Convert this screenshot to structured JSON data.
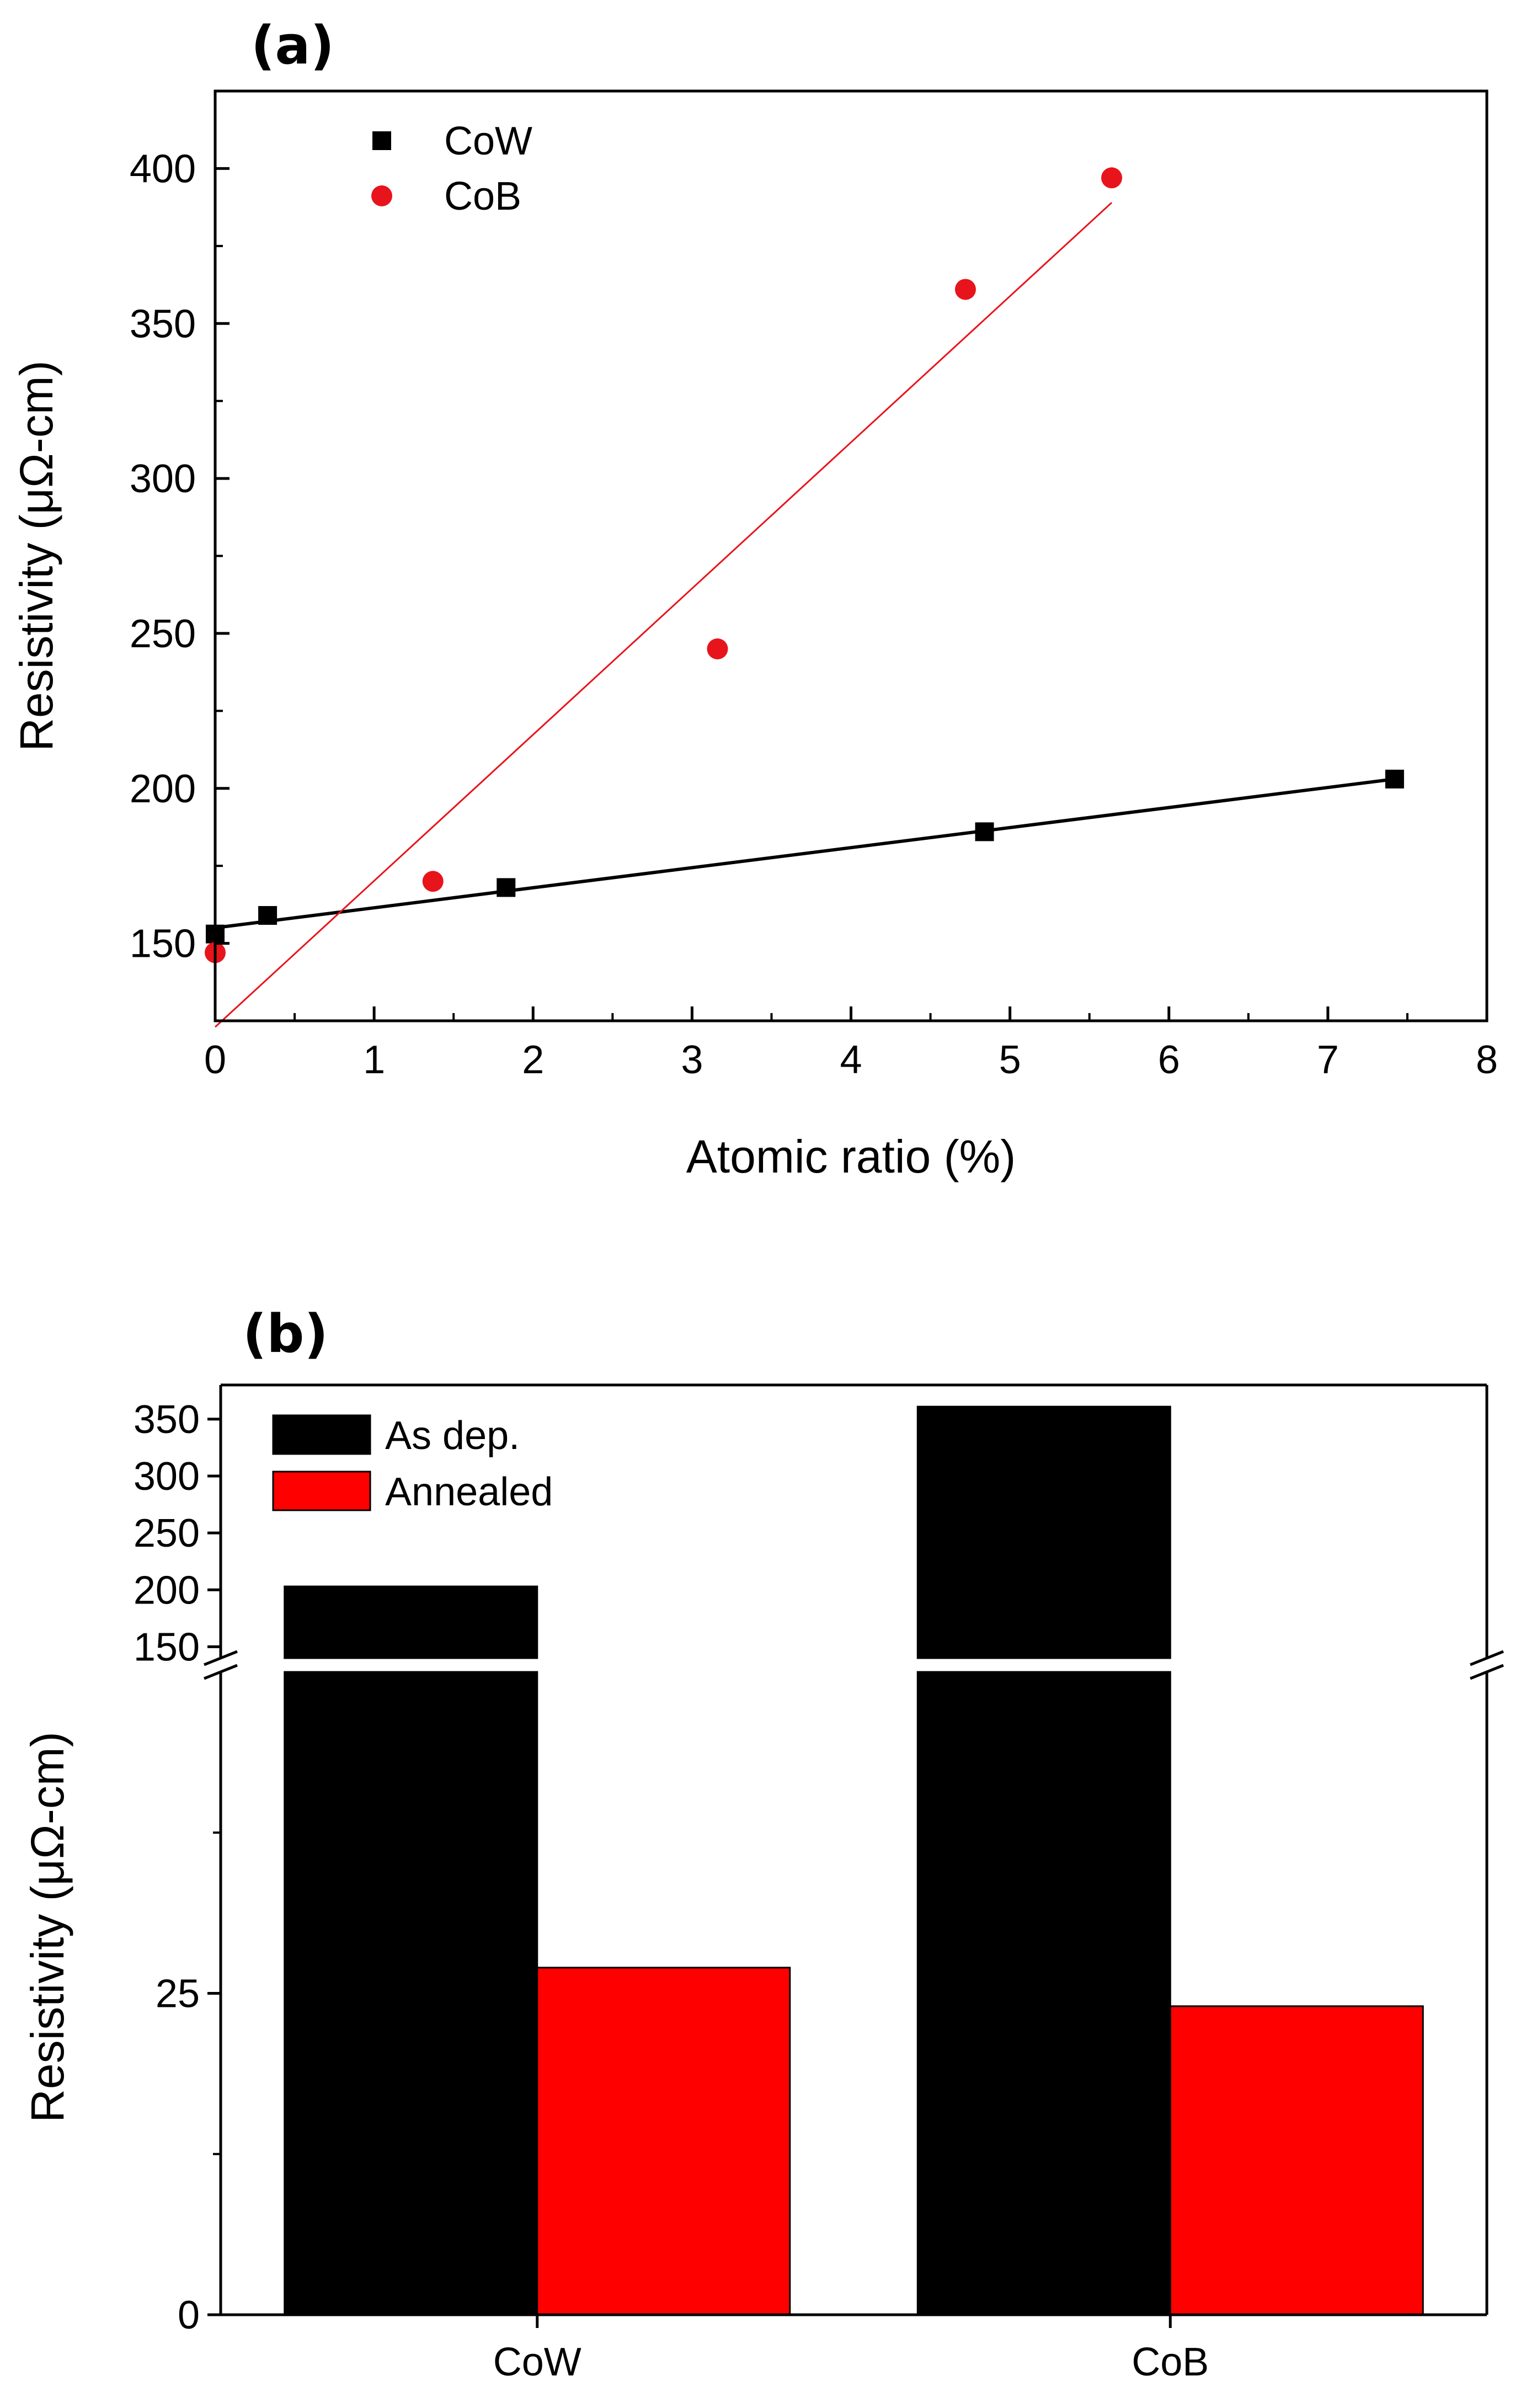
{
  "chart_data": [
    {
      "panel_label": "(a)",
      "type": "scatter",
      "xlabel": "Atomic ratio (%)",
      "ylabel": "Resistivity (μΩ-cm)",
      "xlim": [
        0,
        8
      ],
      "ylim": [
        125,
        425
      ],
      "x_ticks": [
        "0",
        "1",
        "2",
        "3",
        "4",
        "5",
        "6",
        "7",
        "8"
      ],
      "y_ticks": [
        "150",
        "200",
        "250",
        "300",
        "350",
        "400"
      ],
      "legend_position": "top-left",
      "series": [
        {
          "name": "CoW",
          "marker": "square",
          "color": "#000000",
          "x": [
            0.0,
            0.33,
            1.83,
            4.84,
            7.42
          ],
          "y": [
            153,
            159,
            168,
            186,
            203
          ],
          "fit": {
            "x": [
              0.0,
              7.42
            ],
            "y": [
              155,
              203
            ]
          }
        },
        {
          "name": "CoB",
          "marker": "circle",
          "color": "#e8141c",
          "x": [
            0.0,
            1.37,
            3.16,
            4.72,
            5.64
          ],
          "y": [
            147,
            170,
            245,
            361,
            397
          ],
          "fit": {
            "x": [
              0.0,
              5.64
            ],
            "y": [
              123,
              389
            ]
          }
        }
      ]
    },
    {
      "panel_label": "(b)",
      "type": "bar",
      "ylabel": "Resistivity (μΩ-cm)",
      "categories": [
        "CoW",
        "CoB"
      ],
      "axis_break": true,
      "lower_ylim": [
        0,
        50
      ],
      "upper_ylim": [
        140,
        380
      ],
      "lower_ticks": [
        "0",
        "25"
      ],
      "upper_ticks": [
        "150",
        "200",
        "250",
        "300",
        "350"
      ],
      "legend_position": "top-left",
      "series": [
        {
          "name": "As dep.",
          "color": "#000000",
          "values": [
            203,
            361
          ]
        },
        {
          "name": "Annealed",
          "color": "#ff0000",
          "values": [
            27,
            24
          ]
        }
      ]
    }
  ]
}
